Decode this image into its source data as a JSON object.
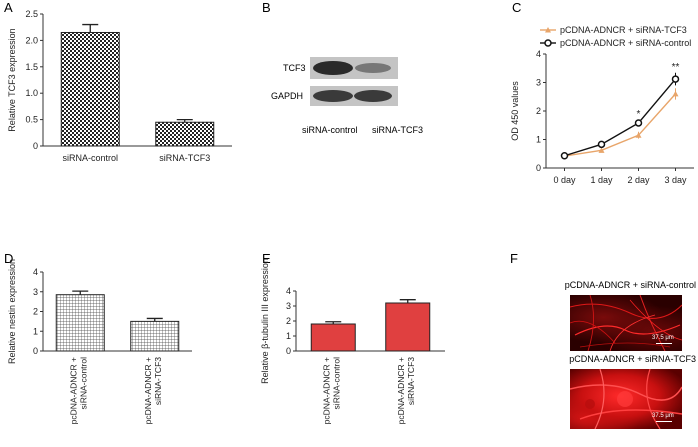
{
  "colors": {
    "axis": "#333333",
    "tcf3_marker": "#e8a56a",
    "control_marker": "#111111",
    "red_bar": "#e04040",
    "micro_bg": "#3a0000",
    "micro_fiber": "#ff2020"
  },
  "panel_labels": {
    "a": "A",
    "b": "B",
    "c": "C",
    "d": "D",
    "e": "E",
    "f": "F"
  },
  "chart_data": [
    {
      "id": "A",
      "type": "bar",
      "categories": [
        "siRNA-control",
        "siRNA-TCF3"
      ],
      "values": [
        2.15,
        0.45
      ],
      "errors": [
        0.15,
        0.05
      ],
      "title": "",
      "xlabel": "",
      "ylabel": "Relative TCF3 expression",
      "ylim": [
        0,
        2.5
      ],
      "yticks": [
        0,
        0.5,
        1.0,
        1.5,
        2.0,
        2.5
      ],
      "ytick_labels": [
        "0",
        "0.5",
        "1.0",
        "1.5",
        "2.0",
        "2.5"
      ],
      "fill_pattern": "checkerboard"
    },
    {
      "id": "B",
      "type": "western-blot",
      "bands": [
        "TCF3",
        "GAPDH"
      ],
      "lanes": [
        "siRNA-control",
        "siRNA-TCF3"
      ],
      "relative_intensity": {
        "TCF3": [
          1.0,
          0.4
        ],
        "GAPDH": [
          1.0,
          1.0
        ]
      }
    },
    {
      "id": "C",
      "type": "line",
      "categories": [
        "0 day",
        "1 day",
        "2 day",
        "3 day"
      ],
      "series": [
        {
          "name": "pCDNA-ADNCR + siRNA-TCF3",
          "values": [
            0.42,
            0.62,
            1.15,
            2.6
          ],
          "errors": [
            0.05,
            0.05,
            0.12,
            0.2
          ],
          "marker": "triangle"
        },
        {
          "name": "pCDNA-ADNCR + siRNA-control",
          "values": [
            0.43,
            0.83,
            1.58,
            3.12
          ],
          "errors": [
            0.05,
            0.05,
            0.1,
            0.22
          ],
          "marker": "circle-open"
        }
      ],
      "annotations": [
        {
          "category": "2 day",
          "text": "*"
        },
        {
          "category": "3 day",
          "text": "**"
        }
      ],
      "ylabel": "OD 450 values",
      "xlabel": "",
      "ylim": [
        0,
        4
      ],
      "yticks": [
        0,
        1,
        2,
        3,
        4
      ],
      "ytick_labels": [
        "0",
        "1",
        "2",
        "3",
        "4"
      ],
      "legend_position": "top"
    },
    {
      "id": "D",
      "type": "bar",
      "categories": [
        "pcDNA-ADNCR + siRNA-control",
        "pcDNA-ADNCR + siRNA-TCF3"
      ],
      "category_lines": [
        [
          "pcDNA-ADNCR +",
          "siRNA-control"
        ],
        [
          "pcDNA-ADNCR +",
          "siRNA-TCF3"
        ]
      ],
      "values": [
        2.85,
        1.5
      ],
      "errors": [
        0.18,
        0.15
      ],
      "ylabel": "Relative nestin expression",
      "xlabel": "",
      "ylim": [
        0,
        4
      ],
      "yticks": [
        0,
        1,
        2,
        3,
        4
      ],
      "ytick_labels": [
        "0",
        "1",
        "2",
        "3",
        "4"
      ],
      "fill_pattern": "grid"
    },
    {
      "id": "E",
      "type": "bar",
      "categories": [
        "pcDNA-ADNCR + siRNA-control",
        "pcDNA-ADNCR + siRNA-TCF3"
      ],
      "category_lines": [
        [
          "pcDNA-ADNCR +",
          "siRNA-control"
        ],
        [
          "pcDNA-ADNCR +",
          "siRNA-TCF3"
        ]
      ],
      "values": [
        1.8,
        3.2
      ],
      "errors": [
        0.15,
        0.22
      ],
      "ylabel": "Relative β-tubulin III expression",
      "xlabel": "",
      "ylim": [
        0,
        4
      ],
      "yticks": [
        0,
        1,
        2,
        3,
        4
      ],
      "ytick_labels": [
        "0",
        "1",
        "2",
        "3",
        "4"
      ],
      "fill_pattern": "solid-red"
    }
  ],
  "micrographs": [
    {
      "title": "pCDNA-ADNCR + siRNA-control",
      "scale": "37.5 μm"
    },
    {
      "title": "pCDNA-ADNCR + siRNA-TCF3",
      "scale": "37.5 μm"
    }
  ]
}
